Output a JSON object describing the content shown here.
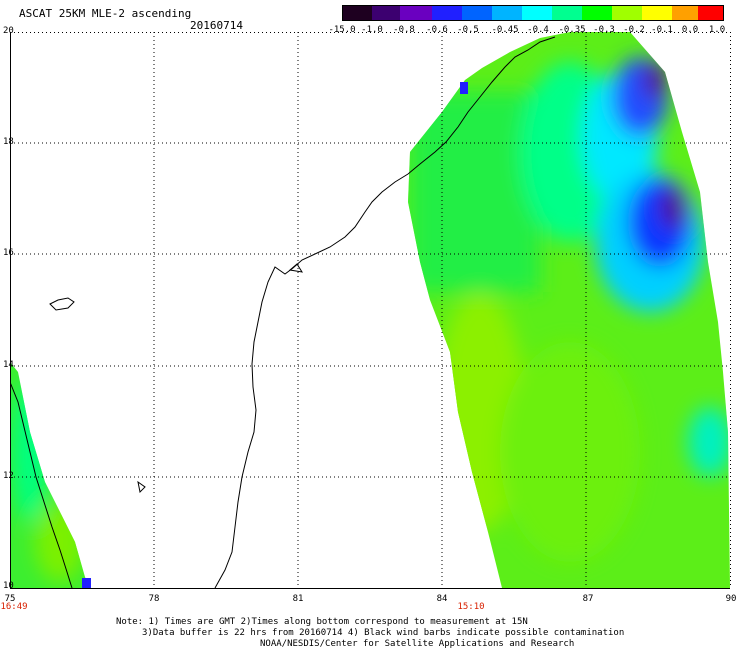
{
  "header": {
    "title": "ASCAT 25KM MLE-2 ascending",
    "date": "20160714"
  },
  "colorbar": {
    "labels": [
      "-15.0",
      "-1.0",
      "-0.8",
      "-0.6",
      "-0.5",
      "-0.45",
      "-0.4",
      "-0.35",
      "-0.3",
      "-0.2",
      "-0.1",
      "0.0",
      "1.0"
    ],
    "colors": [
      "#1e0020",
      "#3c0070",
      "#6a00c0",
      "#2020ff",
      "#0064ff",
      "#00b4ff",
      "#00ffff",
      "#00ff90",
      "#00ff00",
      "#a0ff00",
      "#ffff00",
      "#ffa000",
      "#ff0000"
    ]
  },
  "axes": {
    "lat_ticks": [
      "20",
      "18",
      "16",
      "14",
      "12",
      "10"
    ],
    "lon_ticks": [
      "75",
      "78",
      "81",
      "84",
      "87",
      "90"
    ],
    "lat_range": [
      10,
      20
    ],
    "lon_range": [
      75,
      90
    ],
    "grid": true
  },
  "times": {
    "left": "16:49",
    "middle": "15:10"
  },
  "notes": {
    "line1": "Note: 1) Times are GMT 2)Times along bottom correspond to measurement at 15N",
    "line2": "3)Data buffer is 22 hrs from 20160714 4) Black wind barbs indicate possible contamination",
    "line3": "NOAA/NESDIS/Center for Satellite Applications and Research"
  }
}
